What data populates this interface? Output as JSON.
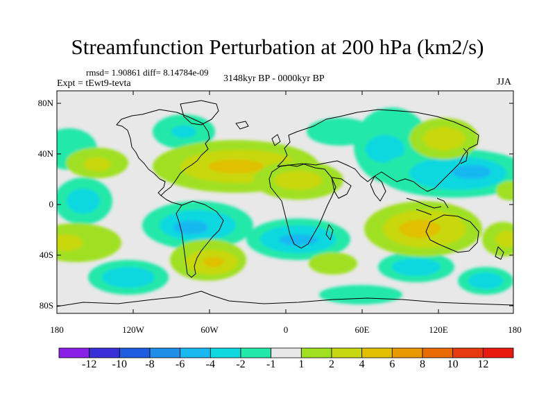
{
  "title": "Streamfunction Perturbation at 200 hPa (km2/s)",
  "stats": "rmsd= 1.90861 diff= 8.14784e-09",
  "experiment": "Expt = tEwt9-tevta",
  "period": "3148kyr BP - 0000kyr BP",
  "season": "JJA",
  "map": {
    "background": "#e8e8e8",
    "lat_ticks": [
      "80N",
      "40N",
      "0",
      "40S",
      "80S"
    ],
    "lon_ticks": [
      "180",
      "120W",
      "60W",
      "0",
      "60E",
      "120E",
      "180"
    ]
  },
  "colorbar": {
    "labels": [
      "-12",
      "-10",
      "-8",
      "-6",
      "-4",
      "-2",
      "-1",
      "1",
      "2",
      "4",
      "6",
      "8",
      "10",
      "12"
    ],
    "colors": [
      "#8a20e8",
      "#3a30d8",
      "#1e5ce0",
      "#1e8ee8",
      "#18b8f0",
      "#10d8e0",
      "#22e8a8",
      "#e8e8e8",
      "#a0e020",
      "#c8d810",
      "#e0c000",
      "#e89800",
      "#e86a00",
      "#e83a10",
      "#e81a10"
    ]
  }
}
